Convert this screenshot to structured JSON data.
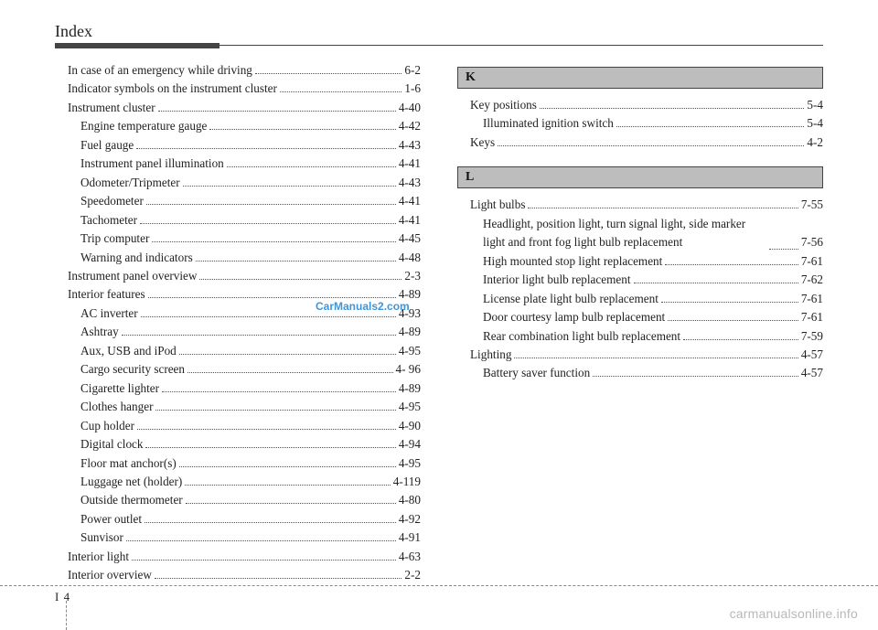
{
  "header": {
    "title": "Index"
  },
  "watermark": "CarManuals2.com",
  "footer": {
    "pageLeft": "I",
    "pageNum": "4",
    "site": "carmanualsonline.info"
  },
  "left": [
    {
      "label": "In case of an emergency while driving",
      "page": "6-2",
      "indent": 1
    },
    {
      "label": "Indicator symbols on the instrument cluster",
      "page": "1-6",
      "indent": 1
    },
    {
      "label": "Instrument cluster",
      "page": "4-40",
      "indent": 1
    },
    {
      "label": "Engine temperature gauge",
      "page": "4-42",
      "indent": 2
    },
    {
      "label": "Fuel gauge",
      "page": "4-43",
      "indent": 2
    },
    {
      "label": "Instrument panel illumination",
      "page": "4-41",
      "indent": 2
    },
    {
      "label": "Odometer/Tripmeter",
      "page": "4-43",
      "indent": 2
    },
    {
      "label": "Speedometer",
      "page": "4-41",
      "indent": 2
    },
    {
      "label": "Tachometer",
      "page": "4-41",
      "indent": 2
    },
    {
      "label": "Trip computer",
      "page": "4-45",
      "indent": 2
    },
    {
      "label": "Warning and indicators",
      "page": "4-48",
      "indent": 2
    },
    {
      "label": "Instrument panel overview",
      "page": "2-3",
      "indent": 1
    },
    {
      "label": "Interior features",
      "page": "4-89",
      "indent": 1
    },
    {
      "label": "AC inverter",
      "page": "4-93",
      "indent": 2
    },
    {
      "label": "Ashtray",
      "page": "4-89",
      "indent": 2
    },
    {
      "label": "Aux, USB and iPod",
      "page": "4-95",
      "indent": 2
    },
    {
      "label": "Cargo security screen",
      "page": "4- 96",
      "indent": 2
    },
    {
      "label": "Cigarette lighter",
      "page": "4-89",
      "indent": 2
    },
    {
      "label": "Clothes hanger",
      "page": "4-95",
      "indent": 2
    },
    {
      "label": "Cup holder",
      "page": "4-90",
      "indent": 2
    },
    {
      "label": "Digital clock",
      "page": "4-94",
      "indent": 2
    },
    {
      "label": "Floor mat anchor(s)",
      "page": "4-95",
      "indent": 2
    },
    {
      "label": "Luggage net (holder)",
      "page": "4-119",
      "indent": 2
    },
    {
      "label": "Outside thermometer",
      "page": "4-80",
      "indent": 2
    },
    {
      "label": "Power outlet",
      "page": "4-92",
      "indent": 2
    },
    {
      "label": "Sunvisor",
      "page": "4-91",
      "indent": 2
    },
    {
      "label": "Interior light",
      "page": "4-63",
      "indent": 1
    },
    {
      "label": "Interior overview",
      "page": "2-2",
      "indent": 1
    }
  ],
  "right": {
    "sections": [
      {
        "letter": "K",
        "entries": [
          {
            "label": "Key positions",
            "page": "5-4",
            "indent": 1
          },
          {
            "label": "Illuminated ignition switch",
            "page": "5-4",
            "indent": 2
          },
          {
            "label": "Keys",
            "page": "4-2",
            "indent": 1
          }
        ]
      },
      {
        "letter": "L",
        "entries": [
          {
            "label": "Light bulbs",
            "page": "7-55",
            "indent": 1
          },
          {
            "label": "Headlight, position light, turn signal light, side marker light and front fog light bulb replacement",
            "page": "7-56",
            "indent": 2,
            "multiline": true
          },
          {
            "label": "High mounted stop light replacement",
            "page": "7-61",
            "indent": 2
          },
          {
            "label": "Interior light bulb replacement",
            "page": "7-62",
            "indent": 2
          },
          {
            "label": "License plate light bulb replacement",
            "page": "7-61",
            "indent": 2
          },
          {
            "label": "Door courtesy lamp bulb replacement",
            "page": "7-61",
            "indent": 2
          },
          {
            "label": "Rear combination light bulb replacement",
            "page": "7-59",
            "indent": 2
          },
          {
            "label": "Lighting",
            "page": "4-57",
            "indent": 1
          },
          {
            "label": "Battery saver function",
            "page": "4-57",
            "indent": 2
          }
        ]
      }
    ]
  }
}
